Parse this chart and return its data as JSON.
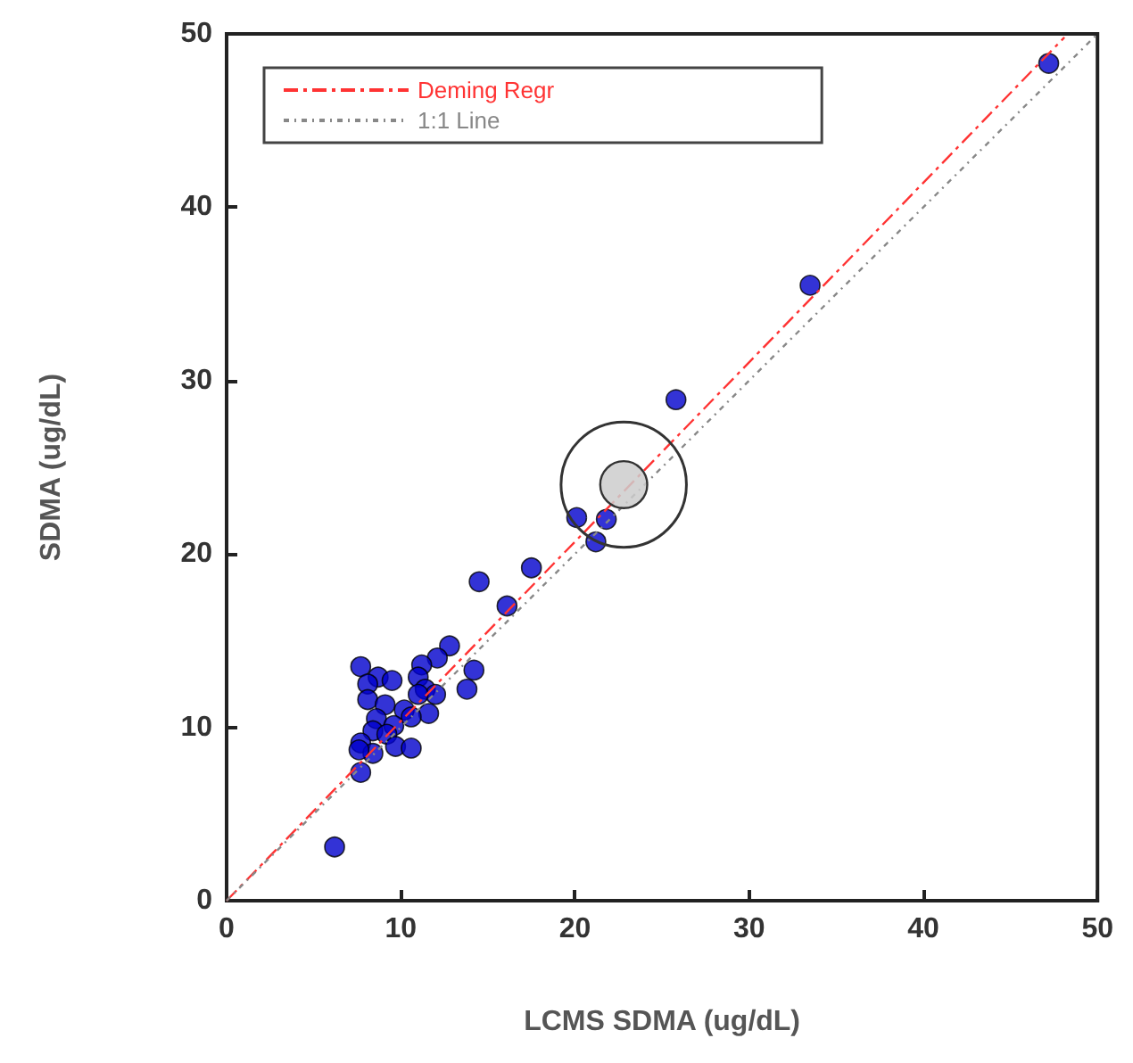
{
  "chart_data": {
    "type": "scatter",
    "xlabel": "LCMS SDMA (ug/dL)",
    "ylabel": "SDMA (ug/dL)",
    "xlim": [
      0,
      50
    ],
    "ylim": [
      0,
      50
    ],
    "xticks": [
      0,
      10,
      20,
      30,
      40,
      50
    ],
    "yticks": [
      0,
      10,
      20,
      30,
      40,
      50
    ],
    "grid": false,
    "legend": "top left",
    "marker": "circle",
    "series": [
      {
        "type": "line",
        "name": "Deming Regr",
        "color": "#ff3333",
        "line_style": "dashed",
        "marker": "none",
        "x": [
          0,
          48.1
        ],
        "values": [
          0,
          49.8
        ]
      },
      {
        "type": "line",
        "name": "1:1 Line",
        "color": "#888888",
        "line_style": "dotted",
        "marker": "none",
        "x": [
          0,
          50
        ],
        "values": [
          0,
          50
        ]
      },
      {
        "color": "#0000cc",
        "x": [
          47.2,
          33.5,
          25.8,
          20.1,
          21.8,
          21.2,
          17.5,
          14.5,
          16.1,
          6.2,
          12.8,
          12.1,
          11.2,
          7.7,
          14.2,
          13.8,
          8.7,
          9.5,
          8.1,
          11.0,
          11.4,
          12.0,
          11.0,
          8.1,
          9.1,
          11.6,
          10.2,
          8.6,
          9.6,
          10.6,
          8.4,
          9.2,
          7.7,
          8.4,
          9.7,
          10.6,
          7.6,
          7.7
        ],
        "values": [
          48.3,
          35.5,
          28.9,
          22.1,
          22.0,
          20.7,
          19.2,
          18.4,
          17.0,
          3.1,
          14.7,
          14.0,
          13.6,
          13.5,
          13.3,
          12.2,
          12.9,
          12.7,
          12.5,
          12.9,
          12.2,
          11.9,
          11.9,
          11.6,
          11.3,
          10.8,
          11.0,
          10.5,
          10.1,
          10.6,
          9.8,
          9.6,
          9.1,
          8.5,
          8.9,
          8.8,
          8.7,
          7.4
        ]
      }
    ]
  }
}
